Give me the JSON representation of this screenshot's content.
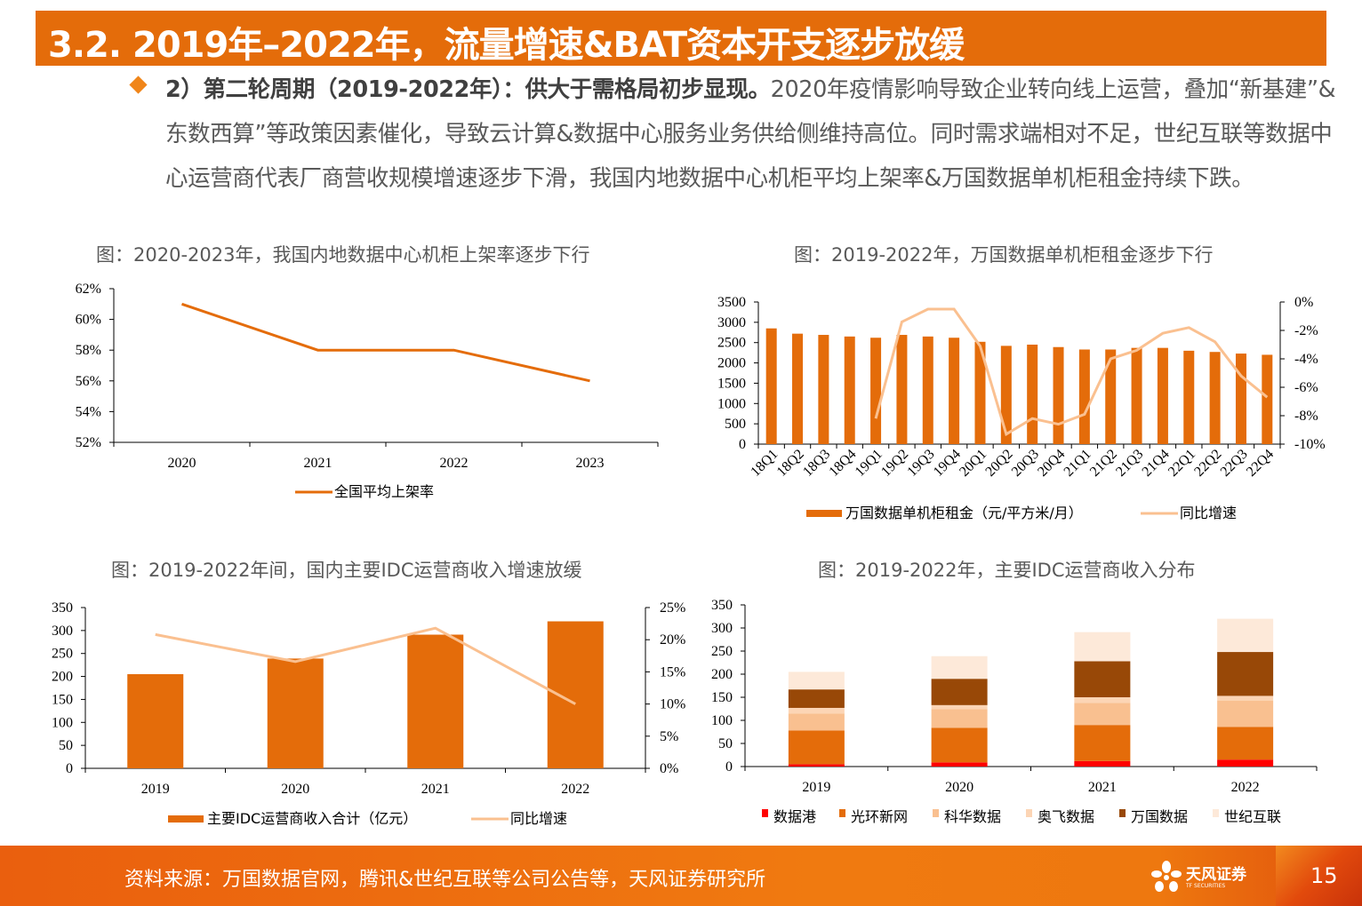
{
  "title": "3.2. 2019年–2022年，流量增速&BAT资本开支逐步放缓",
  "body": {
    "bold": "2）第二轮周期（2019-2022年）：供大于需格局初步显现。",
    "text": "2020年疫情影响导致企业转向线上运营，叠加“新基建”& 东数西算”等政策因素催化，导致云计算&数据中心服务业务供给侧维持高位。同时需求端相对不足，世纪互联等数据中心运营商代表厂商营收规模增速逐步下滑，我国内地数据中心机柜平均上架率&万国数据单机柜租金持续下跌。"
  },
  "captions": [
    "图：2020-2023年，我国内地数据中心机柜上架率逐步下行",
    "图：2019-2022年，万国数据单机柜租金逐步下行",
    "图：2019-2022年间，国内主要IDC运营商收入增速放缓",
    "图：2019-2022年，主要IDC运营商收入分布"
  ],
  "chart_data": [
    {
      "type": "line",
      "categories": [
        "2020",
        "2021",
        "2022",
        "2023"
      ],
      "series": [
        {
          "name": "全国平均上架率",
          "values": [
            61,
            58,
            58,
            56
          ],
          "color": "#E46C0A"
        }
      ],
      "ylim": [
        52,
        62
      ],
      "yticks": [
        "52%",
        "54%",
        "56%",
        "58%",
        "60%",
        "62%"
      ],
      "legend": "bottom",
      "grid": false
    },
    {
      "type": "bar+line",
      "categories": [
        "18Q1",
        "18Q2",
        "18Q3",
        "18Q4",
        "19Q1",
        "19Q2",
        "19Q3",
        "19Q4",
        "20Q1",
        "20Q2",
        "20Q3",
        "20Q4",
        "21Q1",
        "21Q2",
        "21Q3",
        "21Q4",
        "22Q1",
        "22Q2",
        "22Q3",
        "22Q4"
      ],
      "series": [
        {
          "name": "万国数据单机柜租金（元/平方米/月）",
          "type": "bar",
          "axis": "left",
          "color": "#E46C0A",
          "values": [
            2850,
            2720,
            2690,
            2650,
            2620,
            2690,
            2650,
            2620,
            2520,
            2420,
            2450,
            2390,
            2330,
            2330,
            2370,
            2370,
            2300,
            2270,
            2230,
            2200
          ]
        },
        {
          "name": "同比增速",
          "type": "line",
          "axis": "right",
          "color": "#FAC090",
          "values": [
            null,
            null,
            null,
            null,
            -8.2,
            -1.4,
            -0.5,
            -0.5,
            -3.1,
            -9.3,
            -8.2,
            -8.6,
            -7.9,
            -4.0,
            -3.4,
            -2.2,
            -1.8,
            -2.8,
            -5.2,
            -6.7
          ]
        }
      ],
      "ylim": [
        0,
        3500
      ],
      "yticks": [
        "0",
        "500",
        "1000",
        "1500",
        "2000",
        "2500",
        "3000",
        "3500"
      ],
      "y2lim": [
        -10,
        0
      ],
      "y2ticks": [
        "-10%",
        "-8%",
        "-6%",
        "-4%",
        "-2%",
        "0%"
      ],
      "legend": "bottom",
      "grid": false
    },
    {
      "type": "bar+line",
      "categories": [
        "2019",
        "2020",
        "2021",
        "2022"
      ],
      "series": [
        {
          "name": "主要IDC运营商收入合计（亿元）",
          "type": "bar",
          "axis": "left",
          "color": "#E46C0A",
          "values": [
            205,
            239,
            291,
            320
          ]
        },
        {
          "name": "同比增速",
          "type": "line",
          "axis": "right",
          "color": "#FAC090",
          "values": [
            20.8,
            16.6,
            21.8,
            10.0
          ]
        }
      ],
      "ylim": [
        0,
        350
      ],
      "yticks": [
        "0",
        "50",
        "100",
        "150",
        "200",
        "250",
        "300",
        "350"
      ],
      "y2lim": [
        0,
        25
      ],
      "y2ticks": [
        "0%",
        "5%",
        "10%",
        "15%",
        "20%",
        "25%"
      ],
      "legend": "bottom",
      "grid": false
    },
    {
      "type": "stacked-bar",
      "categories": [
        "2019",
        "2020",
        "2021",
        "2022"
      ],
      "series": [
        {
          "name": "数据港",
          "color": "#FF0000",
          "values": [
            5,
            9,
            12,
            15
          ]
        },
        {
          "name": "光环新网",
          "color": "#E46C0A",
          "values": [
            73,
            75,
            78,
            71
          ]
        },
        {
          "name": "科华数据",
          "color": "#F9C090",
          "values": [
            37,
            40,
            48,
            57
          ]
        },
        {
          "name": "奥飞数据",
          "color": "#FCD5B5",
          "values": [
            12,
            9,
            12,
            10
          ]
        },
        {
          "name": "万国数据",
          "color": "#984807",
          "values": [
            40,
            57,
            78,
            95
          ]
        },
        {
          "name": "世纪互联",
          "color": "#FDE9D9",
          "values": [
            38,
            49,
            63,
            72
          ]
        }
      ],
      "ylim": [
        0,
        350
      ],
      "yticks": [
        "0",
        "50",
        "100",
        "150",
        "200",
        "250",
        "300",
        "350"
      ],
      "legend": "bottom",
      "grid": false
    }
  ],
  "footer": {
    "source": "资料来源：万国数据官网，腾讯&世纪互联等公司公告等，天风证券研究所",
    "logo_cn": "天风证券",
    "logo_en": "TF SECURITIES",
    "page": "15"
  }
}
